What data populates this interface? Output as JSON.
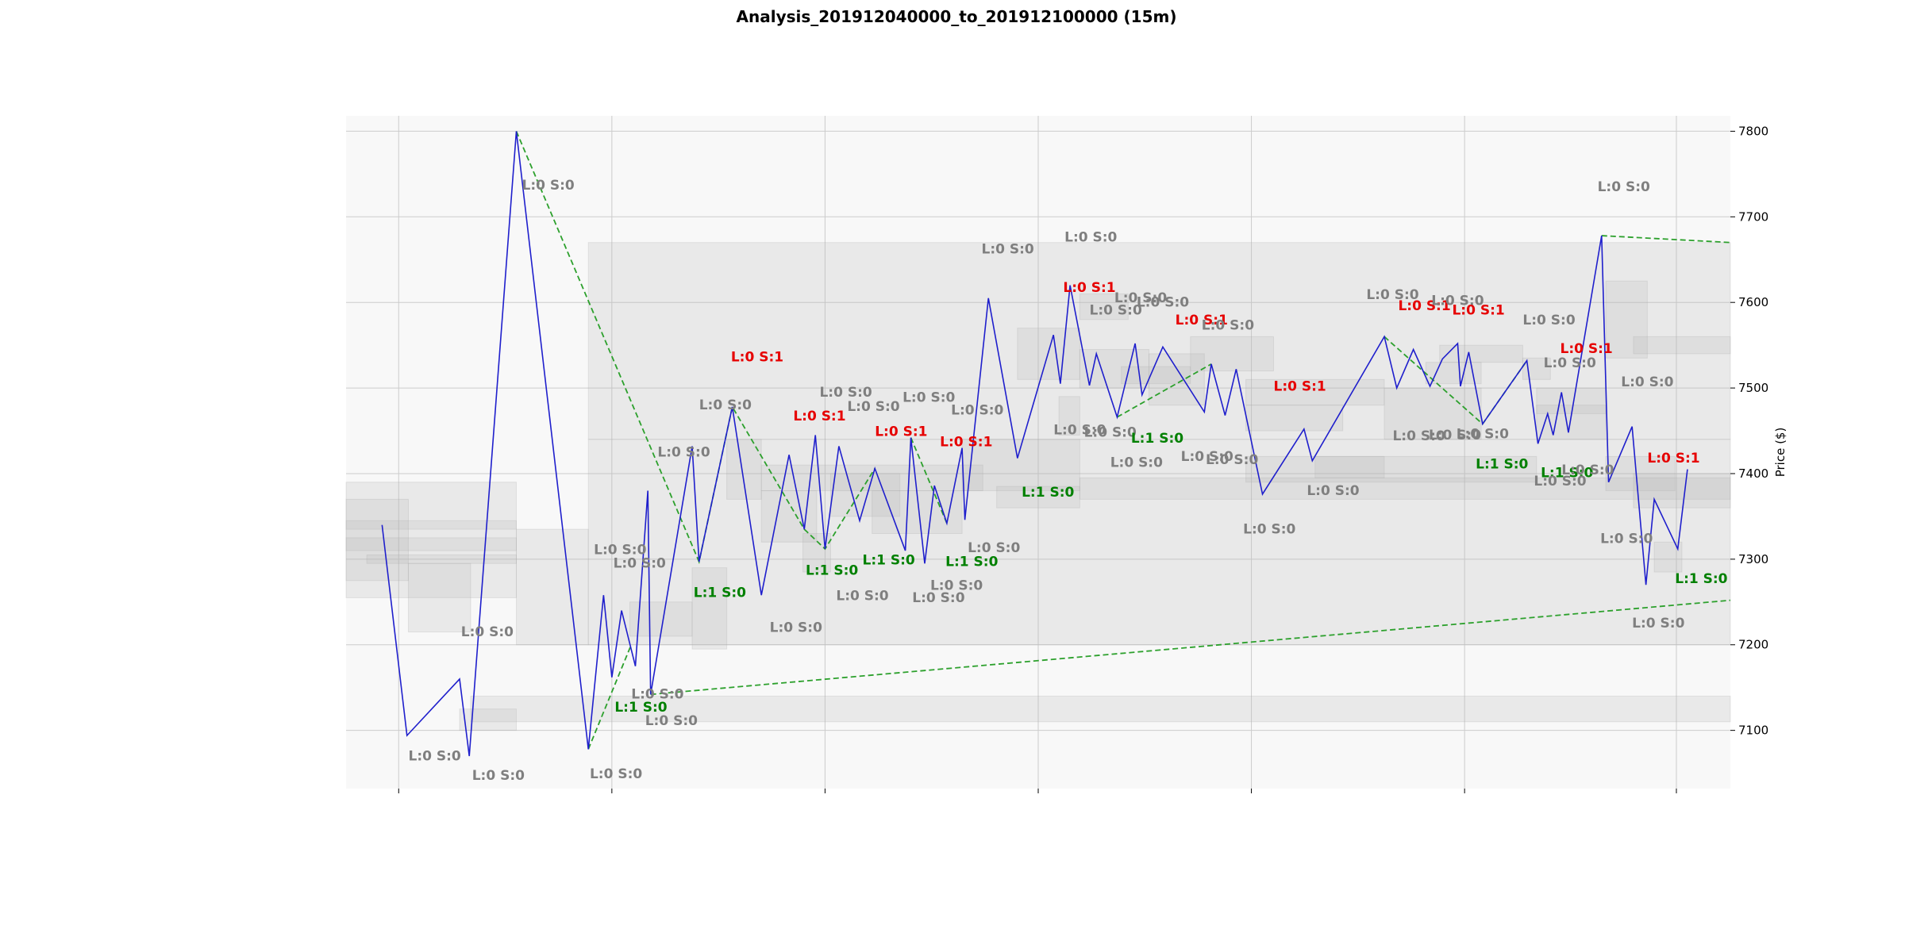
{
  "chart_data": {
    "type": "line",
    "title": "Analysis_201912040000_to_201912100000 (15m)",
    "xlabel": "",
    "ylabel": "Price ($)",
    "x_range": [
      0,
      100
    ],
    "ylim": [
      7032,
      7818
    ],
    "y_ticks": [
      7100,
      7200,
      7300,
      7400,
      7500,
      7600,
      7700,
      7800
    ],
    "x_gridlines": [
      3.8,
      19.2,
      34.6,
      50.0,
      65.4,
      80.8,
      96.1
    ],
    "grid": true,
    "colors": {
      "price": "#1f1fcc",
      "trend": "#2ca02c",
      "short": "#e60000",
      "long": "#008000",
      "neutral": "#7f7f7f",
      "zone": "#b4b4b4",
      "plot_bg": "#f8f8f8"
    },
    "series": [
      {
        "values": [
          [
            2.6,
            7340
          ],
          [
            4.4,
            7094
          ],
          [
            8.2,
            7160
          ],
          [
            8.9,
            7070
          ],
          [
            12.3,
            7800
          ],
          [
            17.5,
            7078
          ],
          [
            18.6,
            7258
          ],
          [
            19.2,
            7162
          ],
          [
            19.9,
            7240
          ],
          [
            20.9,
            7175
          ],
          [
            21.8,
            7380
          ],
          [
            22.0,
            7142
          ],
          [
            25.0,
            7432
          ],
          [
            25.5,
            7297
          ],
          [
            27.9,
            7478
          ],
          [
            30.0,
            7258
          ],
          [
            32.0,
            7422
          ],
          [
            33.1,
            7335
          ],
          [
            33.9,
            7445
          ],
          [
            34.6,
            7312
          ],
          [
            35.6,
            7432
          ],
          [
            37.1,
            7345
          ],
          [
            38.2,
            7406
          ],
          [
            40.4,
            7310
          ],
          [
            40.8,
            7442
          ],
          [
            41.8,
            7295
          ],
          [
            42.5,
            7386
          ],
          [
            43.4,
            7342
          ],
          [
            44.5,
            7430
          ],
          [
            44.7,
            7346
          ],
          [
            46.4,
            7605
          ],
          [
            48.5,
            7418
          ],
          [
            51.1,
            7562
          ],
          [
            51.6,
            7505
          ],
          [
            52.3,
            7620
          ],
          [
            53.7,
            7503
          ],
          [
            54.2,
            7540
          ],
          [
            55.7,
            7466
          ],
          [
            57.0,
            7552
          ],
          [
            57.5,
            7492
          ],
          [
            59.0,
            7548
          ],
          [
            62.0,
            7472
          ],
          [
            62.5,
            7528
          ],
          [
            63.5,
            7468
          ],
          [
            64.3,
            7522
          ],
          [
            66.2,
            7376
          ],
          [
            69.2,
            7452
          ],
          [
            69.8,
            7415
          ],
          [
            75.0,
            7560
          ],
          [
            75.9,
            7500
          ],
          [
            77.1,
            7545
          ],
          [
            78.3,
            7502
          ],
          [
            79.2,
            7534
          ],
          [
            80.3,
            7552
          ],
          [
            80.5,
            7502
          ],
          [
            81.1,
            7542
          ],
          [
            82.1,
            7458
          ],
          [
            85.3,
            7532
          ],
          [
            86.1,
            7435
          ],
          [
            86.8,
            7470
          ],
          [
            87.2,
            7445
          ],
          [
            87.8,
            7495
          ],
          [
            88.3,
            7448
          ],
          [
            90.7,
            7678
          ],
          [
            91.2,
            7390
          ],
          [
            92.9,
            7455
          ],
          [
            93.9,
            7270
          ],
          [
            94.5,
            7370
          ],
          [
            96.2,
            7312
          ],
          [
            96.9,
            7405
          ]
        ]
      }
    ],
    "trend_lines": [
      [
        [
          12.3,
          7800
        ],
        [
          25.5,
          7297
        ],
        [
          27.9,
          7478
        ],
        [
          33.1,
          7335
        ],
        [
          34.6,
          7312
        ],
        [
          38.2,
          7406
        ]
      ],
      [
        [
          40.8,
          7442
        ],
        [
          43.4,
          7342
        ]
      ],
      [
        [
          55.7,
          7466
        ],
        [
          62.5,
          7528
        ]
      ],
      [
        [
          75.0,
          7560
        ],
        [
          82.1,
          7458
        ],
        [
          85.3,
          7532
        ]
      ],
      [
        [
          17.5,
          7078
        ],
        [
          20.6,
          7200
        ]
      ],
      [
        [
          22.0,
          7142
        ],
        [
          100,
          7252
        ]
      ],
      [
        [
          90.7,
          7678
        ],
        [
          100,
          7670
        ]
      ]
    ],
    "zones": [
      [
        17.5,
        100,
        7440,
        7670
      ],
      [
        17.5,
        100,
        7200,
        7440
      ],
      [
        12.3,
        17.5,
        7200,
        7335
      ],
      [
        0,
        12.3,
        7255,
        7390
      ],
      [
        0,
        4.5,
        7275,
        7370
      ],
      [
        4.5,
        9.0,
        7215,
        7295
      ],
      [
        8.2,
        12.3,
        7100,
        7125
      ],
      [
        9.0,
        100,
        7110,
        7140
      ],
      [
        0,
        12.3,
        7310,
        7325
      ],
      [
        0,
        12.3,
        7335,
        7345
      ],
      [
        1.5,
        12.3,
        7295,
        7305
      ],
      [
        20.5,
        25.0,
        7210,
        7250
      ],
      [
        25.0,
        27.5,
        7195,
        7290
      ],
      [
        27.5,
        30.0,
        7370,
        7440
      ],
      [
        30.0,
        34.0,
        7320,
        7380
      ],
      [
        33.0,
        35.0,
        7285,
        7330
      ],
      [
        35.0,
        40.0,
        7350,
        7400
      ],
      [
        38.0,
        44.5,
        7330,
        7380
      ],
      [
        30.0,
        46.0,
        7380,
        7410
      ],
      [
        44.5,
        53.0,
        7380,
        7440
      ],
      [
        47.0,
        53.0,
        7360,
        7385
      ],
      [
        48.5,
        53.0,
        7510,
        7570
      ],
      [
        51.5,
        53.0,
        7445,
        7490
      ],
      [
        53.0,
        56.5,
        7580,
        7610
      ],
      [
        53.0,
        58.0,
        7500,
        7545
      ],
      [
        56.0,
        61.0,
        7505,
        7525
      ],
      [
        58.0,
        62.0,
        7480,
        7540
      ],
      [
        61.0,
        67.0,
        7520,
        7560
      ],
      [
        65.0,
        75.0,
        7480,
        7510
      ],
      [
        65.0,
        72.0,
        7450,
        7480
      ],
      [
        70.0,
        75.0,
        7395,
        7420
      ],
      [
        75.0,
        82.0,
        7440,
        7500
      ],
      [
        78.0,
        82.0,
        7505,
        7530
      ],
      [
        79.0,
        85.0,
        7530,
        7550
      ],
      [
        85.0,
        87.0,
        7510,
        7535
      ],
      [
        86.0,
        91.0,
        7470,
        7500
      ],
      [
        86.0,
        91.0,
        7440,
        7480
      ],
      [
        91.0,
        94.0,
        7535,
        7625
      ],
      [
        93.0,
        100,
        7540,
        7560
      ],
      [
        91.0,
        96.0,
        7380,
        7420
      ],
      [
        93.0,
        100,
        7360,
        7400
      ],
      [
        94.5,
        96.5,
        7285,
        7320
      ],
      [
        53.0,
        100,
        7370,
        7395
      ],
      [
        65.0,
        86.0,
        7390,
        7420
      ]
    ],
    "annotations": [
      {
        "x": 14.6,
        "y": 7732,
        "text": "L:0 S:0",
        "kind": "neutral"
      },
      {
        "x": 6.4,
        "y": 7065,
        "text": "L:0 S:0",
        "kind": "neutral"
      },
      {
        "x": 11.0,
        "y": 7042,
        "text": "L:0 S:0",
        "kind": "neutral"
      },
      {
        "x": 10.2,
        "y": 7210,
        "text": "L:0 S:0",
        "kind": "neutral"
      },
      {
        "x": 19.5,
        "y": 7044,
        "text": "L:0 S:0",
        "kind": "neutral"
      },
      {
        "x": 23.5,
        "y": 7106,
        "text": "L:0 S:0",
        "kind": "neutral"
      },
      {
        "x": 22.5,
        "y": 7137,
        "text": "L:0 S:0",
        "kind": "neutral"
      },
      {
        "x": 21.3,
        "y": 7122,
        "text": "L:1 S:0",
        "kind": "long"
      },
      {
        "x": 19.8,
        "y": 7306,
        "text": "L:0 S:0",
        "kind": "neutral"
      },
      {
        "x": 21.2,
        "y": 7290,
        "text": "L:0 S:0",
        "kind": "neutral"
      },
      {
        "x": 24.4,
        "y": 7420,
        "text": "L:0 S:0",
        "kind": "neutral"
      },
      {
        "x": 27.4,
        "y": 7475,
        "text": "L:0 S:0",
        "kind": "neutral"
      },
      {
        "x": 29.7,
        "y": 7531,
        "text": "L:0 S:1",
        "kind": "short"
      },
      {
        "x": 27.0,
        "y": 7256,
        "text": "L:1 S:0",
        "kind": "long"
      },
      {
        "x": 32.5,
        "y": 7215,
        "text": "L:0 S:0",
        "kind": "neutral"
      },
      {
        "x": 34.2,
        "y": 7462,
        "text": "L:0 S:1",
        "kind": "short"
      },
      {
        "x": 36.1,
        "y": 7490,
        "text": "L:0 S:0",
        "kind": "neutral"
      },
      {
        "x": 38.1,
        "y": 7473,
        "text": "L:0 S:0",
        "kind": "neutral"
      },
      {
        "x": 35.1,
        "y": 7282,
        "text": "L:1 S:0",
        "kind": "long"
      },
      {
        "x": 37.3,
        "y": 7252,
        "text": "L:0 S:0",
        "kind": "neutral"
      },
      {
        "x": 39.2,
        "y": 7294,
        "text": "L:1 S:0",
        "kind": "long"
      },
      {
        "x": 40.1,
        "y": 7444,
        "text": "L:0 S:1",
        "kind": "short"
      },
      {
        "x": 42.8,
        "y": 7250,
        "text": "L:0 S:0",
        "kind": "neutral"
      },
      {
        "x": 42.1,
        "y": 7484,
        "text": "L:0 S:0",
        "kind": "neutral"
      },
      {
        "x": 44.1,
        "y": 7264,
        "text": "L:0 S:0",
        "kind": "neutral"
      },
      {
        "x": 44.8,
        "y": 7432,
        "text": "L:0 S:1",
        "kind": "short"
      },
      {
        "x": 45.6,
        "y": 7469,
        "text": "L:0 S:0",
        "kind": "neutral"
      },
      {
        "x": 45.2,
        "y": 7292,
        "text": "L:1 S:0",
        "kind": "long"
      },
      {
        "x": 46.8,
        "y": 7308,
        "text": "L:0 S:0",
        "kind": "neutral"
      },
      {
        "x": 47.8,
        "y": 7657,
        "text": "L:0 S:0",
        "kind": "neutral"
      },
      {
        "x": 50.7,
        "y": 7373,
        "text": "L:1 S:0",
        "kind": "long"
      },
      {
        "x": 53.8,
        "y": 7671,
        "text": "L:0 S:0",
        "kind": "neutral"
      },
      {
        "x": 53.7,
        "y": 7612,
        "text": "L:0 S:1",
        "kind": "short"
      },
      {
        "x": 55.6,
        "y": 7586,
        "text": "L:0 S:0",
        "kind": "neutral"
      },
      {
        "x": 57.4,
        "y": 7600,
        "text": "L:0 S:0",
        "kind": "neutral"
      },
      {
        "x": 59.0,
        "y": 7595,
        "text": "L:0 S:0",
        "kind": "neutral"
      },
      {
        "x": 53.0,
        "y": 7446,
        "text": "L:0 S:0",
        "kind": "neutral"
      },
      {
        "x": 55.2,
        "y": 7443,
        "text": "L:0 S:0",
        "kind": "neutral"
      },
      {
        "x": 57.1,
        "y": 7408,
        "text": "L:0 S:0",
        "kind": "neutral"
      },
      {
        "x": 58.6,
        "y": 7436,
        "text": "L:1 S:0",
        "kind": "long"
      },
      {
        "x": 61.8,
        "y": 7574,
        "text": "L:0 S:1",
        "kind": "short"
      },
      {
        "x": 63.7,
        "y": 7568,
        "text": "L:0 S:0",
        "kind": "neutral"
      },
      {
        "x": 62.2,
        "y": 7415,
        "text": "L:0 S:0",
        "kind": "neutral"
      },
      {
        "x": 64.0,
        "y": 7411,
        "text": "L:0 S:0",
        "kind": "neutral"
      },
      {
        "x": 68.9,
        "y": 7497,
        "text": "L:0 S:1",
        "kind": "short"
      },
      {
        "x": 71.3,
        "y": 7375,
        "text": "L:0 S:0",
        "kind": "neutral"
      },
      {
        "x": 66.7,
        "y": 7330,
        "text": "L:0 S:0",
        "kind": "neutral"
      },
      {
        "x": 77.5,
        "y": 7439,
        "text": "L:0 S:0",
        "kind": "neutral"
      },
      {
        "x": 75.6,
        "y": 7604,
        "text": "L:0 S:0",
        "kind": "neutral"
      },
      {
        "x": 77.9,
        "y": 7591,
        "text": "L:0 S:1",
        "kind": "short"
      },
      {
        "x": 80.3,
        "y": 7597,
        "text": "L:0 S:0",
        "kind": "neutral"
      },
      {
        "x": 81.8,
        "y": 7586,
        "text": "L:0 S:1",
        "kind": "short"
      },
      {
        "x": 80.1,
        "y": 7440,
        "text": "L:0 S:0",
        "kind": "neutral"
      },
      {
        "x": 82.1,
        "y": 7441,
        "text": "L:0 S:0",
        "kind": "neutral"
      },
      {
        "x": 83.5,
        "y": 7406,
        "text": "L:1 S:0",
        "kind": "long"
      },
      {
        "x": 86.9,
        "y": 7574,
        "text": "L:0 S:0",
        "kind": "neutral"
      },
      {
        "x": 88.4,
        "y": 7524,
        "text": "L:0 S:0",
        "kind": "neutral"
      },
      {
        "x": 89.6,
        "y": 7541,
        "text": "L:0 S:1",
        "kind": "short"
      },
      {
        "x": 88.2,
        "y": 7396,
        "text": "L:1 S:0",
        "kind": "long"
      },
      {
        "x": 87.7,
        "y": 7386,
        "text": "L:0 S:0",
        "kind": "neutral"
      },
      {
        "x": 89.7,
        "y": 7399,
        "text": "L:0 S:0",
        "kind": "neutral"
      },
      {
        "x": 92.3,
        "y": 7730,
        "text": "L:0 S:0",
        "kind": "neutral"
      },
      {
        "x": 94.0,
        "y": 7502,
        "text": "L:0 S:0",
        "kind": "neutral"
      },
      {
        "x": 95.9,
        "y": 7413,
        "text": "L:0 S:1",
        "kind": "short"
      },
      {
        "x": 92.5,
        "y": 7319,
        "text": "L:0 S:0",
        "kind": "neutral"
      },
      {
        "x": 97.9,
        "y": 7272,
        "text": "L:1 S:0",
        "kind": "long"
      },
      {
        "x": 94.8,
        "y": 7220,
        "text": "L:0 S:0",
        "kind": "neutral"
      }
    ]
  }
}
